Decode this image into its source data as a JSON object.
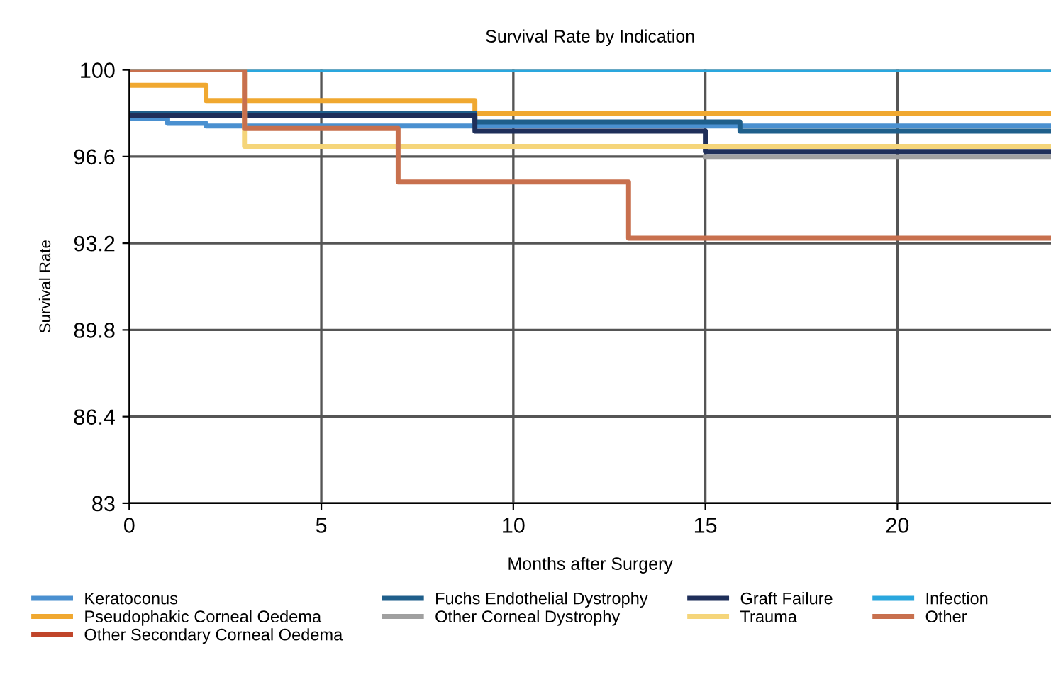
{
  "chart_data": {
    "type": "step",
    "title": "Survival Rate by Indication",
    "xlabel": "Months after Surgery",
    "ylabel": "Survival Rate",
    "xlim": [
      0,
      24
    ],
    "xticks": [
      0,
      5,
      10,
      15,
      20
    ],
    "ylim": [
      83,
      100
    ],
    "yticks": [
      83,
      86.4,
      89.8,
      93.2,
      96.6,
      100
    ],
    "grid": true,
    "legend": "bottom",
    "series": [
      {
        "name": "Keratoconus",
        "color": "#4a90d0",
        "x": [
          0,
          1,
          2,
          24
        ],
        "values": [
          98.1,
          97.9,
          97.8,
          97.8
        ]
      },
      {
        "name": "Pseudophakic Corneal Oedema",
        "color": "#f0a830",
        "x": [
          0,
          2,
          9,
          24
        ],
        "values": [
          99.4,
          98.8,
          98.3,
          98.3
        ]
      },
      {
        "name": "Other Secondary Corneal Oedema",
        "color": "#c0452a"
      },
      {
        "name": "Fuchs Endothelial Dystrophy",
        "color": "#1f5f8b",
        "x": [
          0,
          9,
          15.9,
          24
        ],
        "values": [
          98.3,
          97.96,
          97.6,
          97.6
        ]
      },
      {
        "name": "Other Corneal Dystrophy",
        "color": "#a0a0a0",
        "x": [
          15,
          24
        ],
        "values": [
          96.6,
          96.6
        ]
      },
      {
        "name": "Graft Failure",
        "color": "#1f2f5a",
        "x": [
          0,
          9,
          15,
          24
        ],
        "values": [
          98.2,
          97.6,
          96.8,
          96.8
        ]
      },
      {
        "name": "Trauma",
        "color": "#f5d57a",
        "x": [
          0,
          3,
          24
        ],
        "values": [
          100,
          97.0,
          97.0
        ]
      },
      {
        "name": "Infection",
        "color": "#2aa7de",
        "x": [
          0,
          24
        ],
        "values": [
          100,
          100
        ]
      },
      {
        "name": "Other",
        "color": "#c8704e",
        "x": [
          0,
          3,
          7,
          13,
          24
        ],
        "values": [
          100,
          97.7,
          95.6,
          93.4,
          93.4
        ]
      }
    ]
  }
}
